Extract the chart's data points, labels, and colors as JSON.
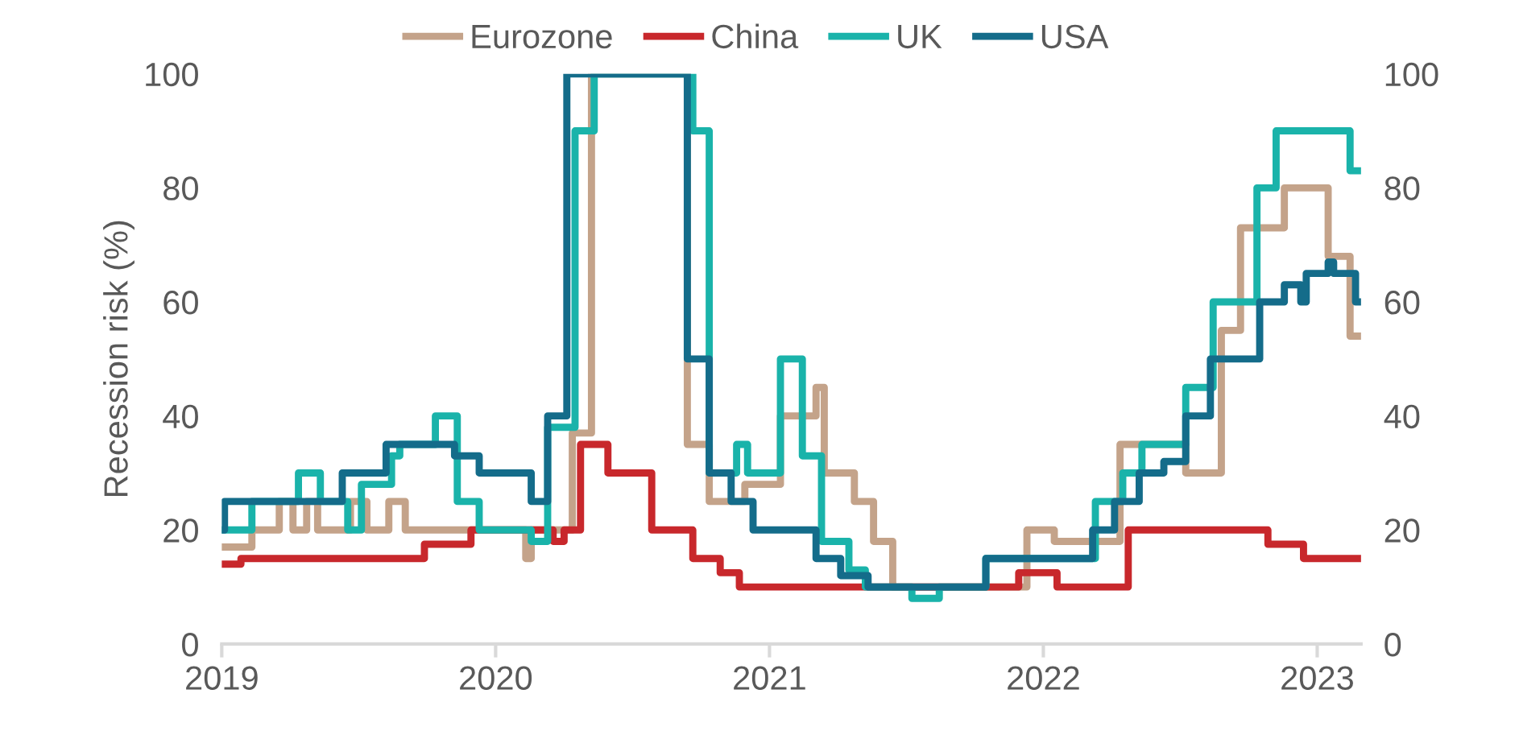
{
  "chart_data": {
    "type": "step",
    "ylabel": "Recession risk (%)",
    "xlim": [
      2019,
      2023.16
    ],
    "xticks": [
      2019,
      2020,
      2021,
      2022,
      2023
    ],
    "ylim": [
      0,
      100
    ],
    "yticks": [
      0,
      20,
      40,
      60,
      80,
      100
    ],
    "y2lim": [
      0,
      100
    ],
    "y2ticks": [
      0,
      20,
      40,
      60,
      80,
      100
    ],
    "grid": false,
    "legend": "top",
    "line_style": "solid",
    "marker": "none",
    "series": [
      {
        "name": "Eurozone",
        "color": "#c4a38a",
        "x": [
          2019.0,
          2019.11,
          2019.21,
          2019.26,
          2019.31,
          2019.35,
          2019.47,
          2019.53,
          2019.61,
          2019.67,
          2020.11,
          2020.13,
          2020.28,
          2020.35,
          2020.7,
          2020.78,
          2020.91,
          2021.04,
          2021.17,
          2021.2,
          2021.31,
          2021.38,
          2021.45,
          2021.94,
          2022.04,
          2022.28,
          2022.52,
          2022.65,
          2022.72,
          2022.88,
          2023.04,
          2023.12,
          2023.16
        ],
        "values": [
          17,
          20,
          25,
          20,
          25,
          20,
          25,
          20,
          25,
          20,
          15,
          20,
          37,
          100,
          35,
          25,
          28,
          40,
          45,
          30,
          25,
          18,
          10,
          20,
          18,
          35,
          30,
          55,
          73,
          80,
          68,
          54,
          54
        ]
      },
      {
        "name": "China",
        "color": "#c8282c",
        "x": [
          2019.0,
          2019.07,
          2019.74,
          2019.91,
          2020.21,
          2020.25,
          2020.31,
          2020.41,
          2020.57,
          2020.72,
          2020.82,
          2020.89,
          2021.91,
          2022.05,
          2022.31,
          2022.82,
          2022.95,
          2023.16
        ],
        "values": [
          14,
          15,
          17.5,
          20,
          18,
          20,
          35,
          30,
          20,
          15,
          12.5,
          10,
          12.5,
          10,
          20,
          17.5,
          15,
          15
        ]
      },
      {
        "name": "UK",
        "color": "#1ab3aa",
        "x": [
          2019.0,
          2019.11,
          2019.28,
          2019.36,
          2019.46,
          2019.51,
          2019.62,
          2019.65,
          2019.78,
          2019.86,
          2019.94,
          2020.13,
          2020.19,
          2020.29,
          2020.36,
          2020.72,
          2020.78,
          2020.88,
          2020.92,
          2021.04,
          2021.12,
          2021.19,
          2021.29,
          2021.35,
          2021.52,
          2021.62,
          2021.79,
          2022.19,
          2022.29,
          2022.36,
          2022.52,
          2022.62,
          2022.78,
          2022.85,
          2023.12,
          2023.16
        ],
        "values": [
          20,
          25,
          30,
          25,
          20,
          28,
          33,
          35,
          40,
          25,
          20,
          18,
          38,
          90,
          100,
          90,
          30,
          35,
          30,
          50,
          33,
          18,
          13,
          10,
          8,
          10,
          15,
          25,
          30,
          35,
          45,
          60,
          80,
          90,
          83,
          83
        ]
      },
      {
        "name": "USA",
        "color": "#146c8a",
        "x": [
          2019.0,
          2019.01,
          2019.44,
          2019.6,
          2019.85,
          2019.94,
          2020.13,
          2020.19,
          2020.26,
          2020.7,
          2020.78,
          2020.86,
          2020.94,
          2021.17,
          2021.26,
          2021.36,
          2021.79,
          2022.18,
          2022.26,
          2022.35,
          2022.44,
          2022.52,
          2022.61,
          2022.79,
          2022.88,
          2022.94,
          2022.96,
          2023.04,
          2023.06,
          2023.14,
          2023.16
        ],
        "values": [
          20,
          25,
          30,
          35,
          33,
          30,
          25,
          40,
          100,
          50,
          30,
          25,
          20,
          15,
          12,
          10,
          15,
          20,
          25,
          30,
          32,
          40,
          50,
          60,
          63,
          60,
          65,
          67,
          65,
          60,
          60
        ]
      }
    ]
  }
}
